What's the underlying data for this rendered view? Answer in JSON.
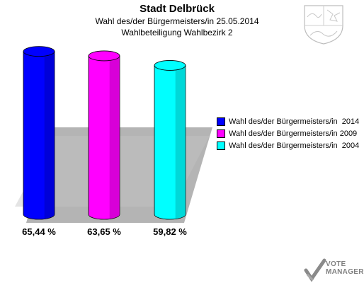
{
  "header": {
    "title": "Stadt Delbrück",
    "subtitle1": "Wahl des/der Bürgermeisters/in  25.05.2014",
    "subtitle2": "Wahlbeteiligung Wahlbezirk 2"
  },
  "chart_data": {
    "type": "bar",
    "categories": [
      "Wahl des/der Bürgermeisters/in  2014",
      "Wahl des/der Bürgermeisters/in 2009",
      "Wahl des/der Bürgermeisters/in  2004"
    ],
    "values": [
      65.44,
      63.65,
      59.82
    ],
    "value_labels": [
      "65,44 %",
      "63,65 %",
      "59,82 %"
    ],
    "series": [
      {
        "name": "Wahl des/der Bürgermeisters/in  2014",
        "value": 65.44,
        "color": "#0000ff"
      },
      {
        "name": "Wahl des/der Bürgermeisters/in 2009",
        "value": 63.65,
        "color": "#ff00ff"
      },
      {
        "name": "Wahl des/der Bürgermeisters/in  2004",
        "value": 59.82,
        "color": "#00ffff"
      }
    ],
    "title": "Stadt Delbrück",
    "ylim": [
      0,
      100
    ],
    "grid": false,
    "legend_position": "right"
  },
  "branding": {
    "logo_line1": "VOTE",
    "logo_line2": "MANAGER",
    "crest_icon": "nrw-crest-icon"
  }
}
